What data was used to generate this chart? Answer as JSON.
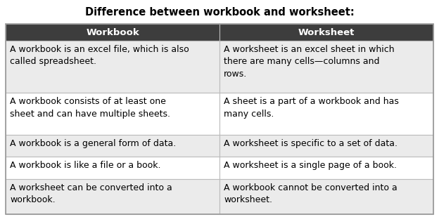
{
  "title": "Difference between workbook and worksheet:",
  "title_fontsize": 10.5,
  "title_fontweight": "bold",
  "header": [
    "Workbook",
    "Worksheet"
  ],
  "header_bg": "#3d3d3d",
  "header_fg": "#ffffff",
  "header_fontsize": 9.5,
  "rows": [
    [
      "A workbook is an excel file, which is also\ncalled spreadsheet.",
      "A worksheet is an excel sheet in which\nthere are many cells—columns and\nrows."
    ],
    [
      "A workbook consists of at least one\nsheet and can have multiple sheets.",
      "A sheet is a part of a workbook and has\nmany cells."
    ],
    [
      "A workbook is a general form of data.",
      "A worksheet is specific to a set of data."
    ],
    [
      "A workbook is like a file or a book.",
      "A worksheet is a single page of a book."
    ],
    [
      "A worksheet can be converted into a\nworkbook.",
      "A workbook cannot be converted into a\nworksheet."
    ]
  ],
  "cell_bg_even": "#ebebeb",
  "cell_bg_odd": "#ffffff",
  "cell_fontsize": 9.0,
  "border_color": "#bbbbbb",
  "bg_color": "#ffffff",
  "fig_w": 6.24,
  "fig_h": 3.09,
  "dpi": 100
}
